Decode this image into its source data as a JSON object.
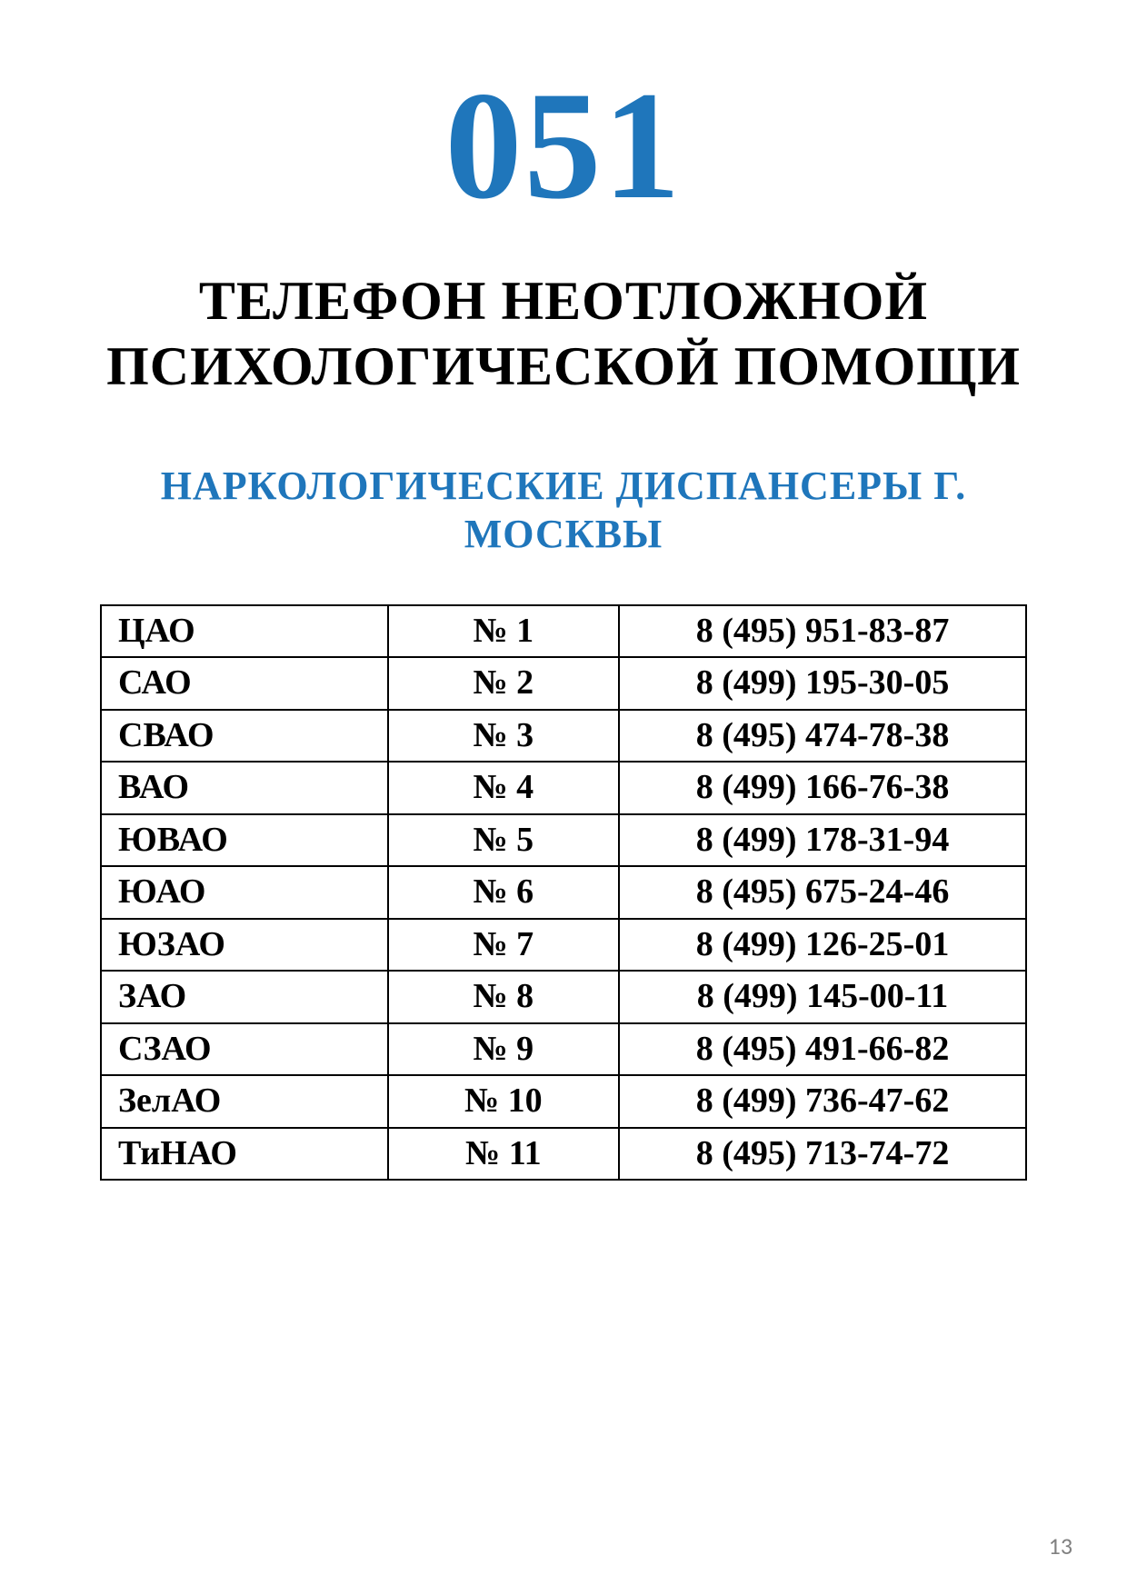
{
  "page": {
    "main_number": "051",
    "subtitle": "ТЕЛЕФОН НЕОТЛОЖНОЙ ПСИХОЛОГИЧЕСКОЙ ПОМОЩИ",
    "section_heading": "НАРКОЛОГИЧЕСКИЕ ДИСПАНСЕРЫ Г. МОСКВЫ",
    "page_number": "13"
  },
  "colors": {
    "accent": "#1f76bb",
    "text": "#000000",
    "page_bg": "#ffffff",
    "border": "#000000",
    "page_number": "#808080"
  },
  "typography": {
    "main_number_fontsize": 170,
    "subtitle_fontsize": 60,
    "section_heading_fontsize": 44,
    "table_fontsize": 38,
    "page_number_fontsize": 26,
    "font_family": "Book Antiqua / Palatino serif"
  },
  "table": {
    "type": "table",
    "columns": [
      "district",
      "number",
      "phone"
    ],
    "column_widths_pct": [
      31,
      25,
      44
    ],
    "column_align": [
      "left",
      "center",
      "center"
    ],
    "border_width": 2,
    "rows": [
      {
        "district": "ЦАО",
        "number": "№ 1",
        "phone": "8 (495) 951-83-87"
      },
      {
        "district": "САО",
        "number": "№ 2",
        "phone": "8 (499) 195-30-05"
      },
      {
        "district": "СВАО",
        "number": "№ 3",
        "phone": "8 (495) 474-78-38"
      },
      {
        "district": "ВАО",
        "number": "№ 4",
        "phone": "8 (499) 166-76-38"
      },
      {
        "district": "ЮВАО",
        "number": "№ 5",
        "phone": "8 (499) 178-31-94"
      },
      {
        "district": "ЮАО",
        "number": "№ 6",
        "phone": "8 (495) 675-24-46"
      },
      {
        "district": "ЮЗАО",
        "number": "№ 7",
        "phone": "8 (499) 126-25-01"
      },
      {
        "district": "ЗАО",
        "number": "№ 8",
        "phone": "8 (499) 145-00-11"
      },
      {
        "district": "СЗАО",
        "number": "№ 9",
        "phone": "8 (495) 491-66-82"
      },
      {
        "district": "ЗелАО",
        "number": "№ 10",
        "phone": "8 (499) 736-47-62"
      },
      {
        "district": "ТиНАО",
        "number": "№ 11",
        "phone": "8 (495) 713-74-72"
      }
    ]
  }
}
